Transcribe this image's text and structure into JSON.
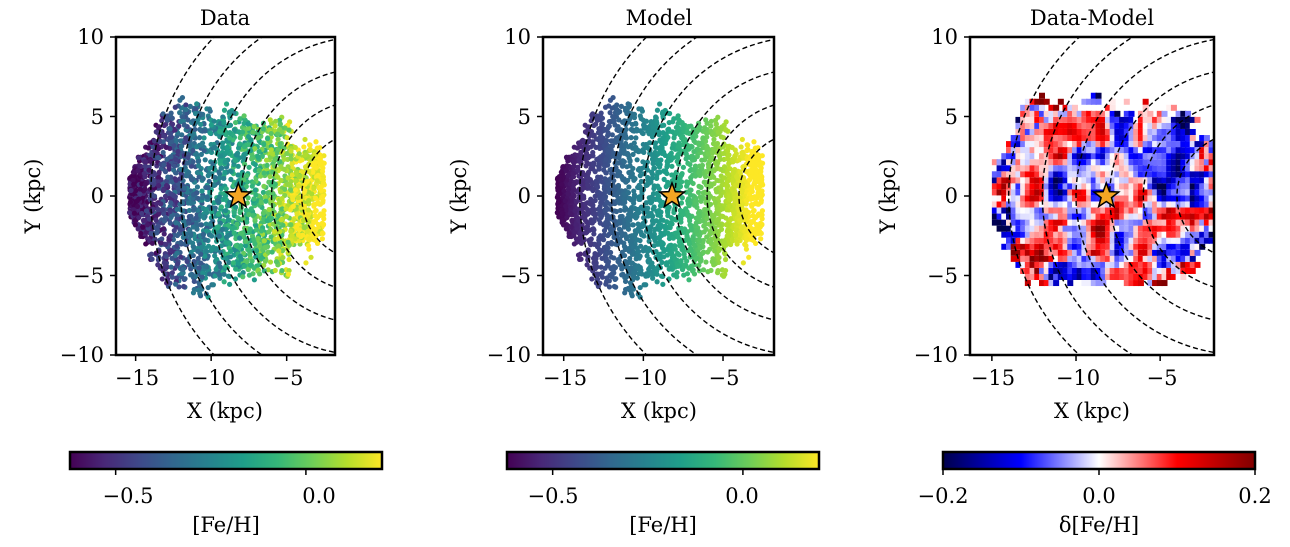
{
  "colors": {
    "viridis": [
      "#440154",
      "#482878",
      "#3e4989",
      "#31688e",
      "#26828e",
      "#1f9e89",
      "#35b779",
      "#6ece58",
      "#b5de2b",
      "#fde725"
    ],
    "seismic": [
      "#00004c",
      "#0000ff",
      "#ffffff",
      "#ff0000",
      "#800000"
    ],
    "star": "#f5a623",
    "frame": "#000000"
  },
  "chart_data": [
    {
      "type": "scatter",
      "title": "Data",
      "xlabel": "X (kpc)",
      "ylabel": "Y (kpc)",
      "xlim": [
        -16.3,
        -1.8
      ],
      "ylim": [
        -10,
        10
      ],
      "xticks": [
        -15,
        -10,
        -5
      ],
      "yticks": [
        -10,
        -5,
        0,
        5,
        10
      ],
      "xtick_labels": [
        "−15",
        "−10",
        "−5"
      ],
      "ytick_labels": [
        "−10",
        "−5",
        "0",
        "5",
        "10"
      ],
      "sun": {
        "x": -8.2,
        "y": 0
      },
      "circle_radii_kpc": [
        4,
        6,
        8,
        10,
        12,
        14
      ],
      "color_field": "gradient_noisy",
      "colorbar": {
        "cmap": "viridis",
        "label": "[Fe/H]",
        "range": [
          -0.62,
          0.2
        ],
        "ticks": [
          -0.5,
          0.0
        ],
        "tick_labels": [
          "−0.5",
          "0.0"
        ]
      }
    },
    {
      "type": "scatter",
      "title": "Model",
      "xlabel": "X (kpc)",
      "ylabel": "Y (kpc)",
      "xlim": [
        -16.3,
        -1.8
      ],
      "ylim": [
        -10,
        10
      ],
      "xticks": [
        -15,
        -10,
        -5
      ],
      "yticks": [
        -10,
        -5,
        0,
        5,
        10
      ],
      "xtick_labels": [
        "−15",
        "−10",
        "−5"
      ],
      "ytick_labels": [
        "−10",
        "−5",
        "0",
        "5",
        "10"
      ],
      "sun": {
        "x": -8.2,
        "y": 0
      },
      "circle_radii_kpc": [
        4,
        6,
        8,
        10,
        12,
        14
      ],
      "color_field": "gradient_smooth",
      "colorbar": {
        "cmap": "viridis",
        "label": "[Fe/H]",
        "range": [
          -0.62,
          0.2
        ],
        "ticks": [
          -0.5,
          0.0
        ],
        "tick_labels": [
          "−0.5",
          "0.0"
        ]
      }
    },
    {
      "type": "heatmap",
      "title": "Data-Model",
      "xlabel": "X (kpc)",
      "ylabel": "Y (kpc)",
      "xlim": [
        -16.3,
        -1.8
      ],
      "ylim": [
        -10,
        10
      ],
      "xticks": [
        -15,
        -10,
        -5
      ],
      "yticks": [
        -10,
        -5,
        0,
        5,
        10
      ],
      "xtick_labels": [
        "−15",
        "−10",
        "−5"
      ],
      "ytick_labels": [
        "−10",
        "−5",
        "0",
        "5",
        "10"
      ],
      "sun": {
        "x": -8.2,
        "y": 0
      },
      "circle_radii_kpc": [
        4,
        6,
        8,
        10,
        12,
        14
      ],
      "color_field": "residual",
      "colorbar": {
        "cmap": "seismic",
        "label": "δ[Fe/H]",
        "range": [
          -0.2,
          0.2
        ],
        "ticks": [
          -0.2,
          0.0,
          0.2
        ],
        "tick_labels": [
          "−0.2",
          "0.0",
          "0.2"
        ]
      }
    }
  ]
}
